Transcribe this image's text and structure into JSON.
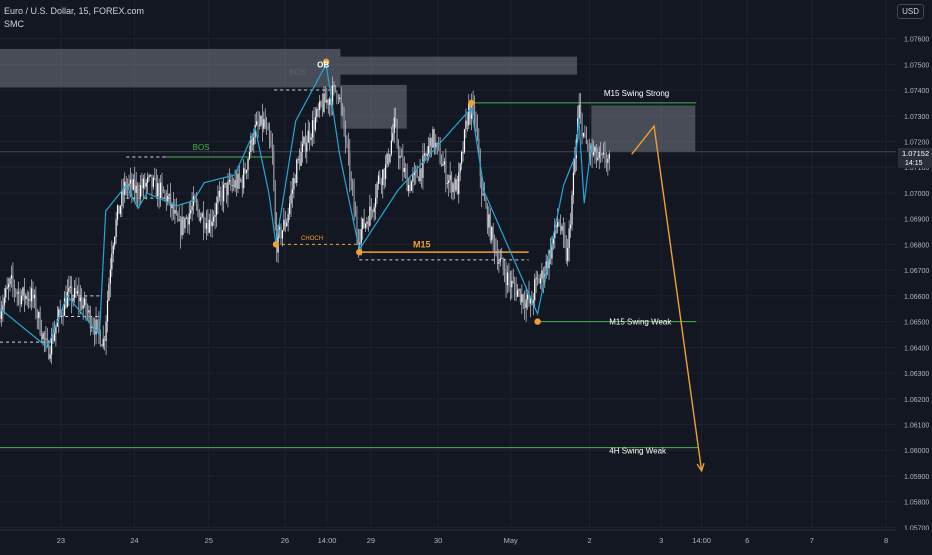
{
  "header": {
    "symbol_line": "Euro / U.S. Dollar, 15, FOREX.com",
    "indicator": "SMC",
    "currency": "USD"
  },
  "price_badge": {
    "price": "1.07152",
    "countdown": "14:15"
  },
  "colors": {
    "background": "#131722",
    "grid": "#1e222d",
    "candle": "#c8ccd6",
    "zigzag": "#26a6d1",
    "swing_point": "#f0a030",
    "projection": "#f0a030",
    "swing_line": "#4caf50",
    "zone": "#8a8e99",
    "badge": "#2a2e39"
  },
  "chart_data": {
    "type": "candlestick",
    "title": "",
    "symbol": "EUR/USD",
    "interval": "15",
    "ylim": [
      1.0569,
      1.0775
    ],
    "yticks": [
      1.076,
      1.075,
      1.074,
      1.073,
      1.072,
      1.071,
      1.07,
      1.069,
      1.068,
      1.067,
      1.066,
      1.065,
      1.064,
      1.063,
      1.062,
      1.061,
      1.06,
      1.059,
      1.058,
      1.057
    ],
    "ytick_labels": [
      "1.07600",
      "1.07500",
      "1.07400",
      "1.07300",
      "1.07200",
      "1.07100",
      "1.07000",
      "1.06900",
      "1.06800",
      "1.06700",
      "1.06600",
      "1.06500",
      "1.06400",
      "1.06300",
      "1.06200",
      "1.06100",
      "1.06000",
      "1.05900",
      "1.05800",
      "1.05700"
    ],
    "xlim": [
      0,
      100
    ],
    "xticks": [
      {
        "label": "23",
        "x": 6.8
      },
      {
        "label": "24",
        "x": 15.0
      },
      {
        "label": "25",
        "x": 23.3
      },
      {
        "label": "26",
        "x": 31.8
      },
      {
        "label": "14:00",
        "x": 36.5
      },
      {
        "label": "29",
        "x": 41.4
      },
      {
        "label": "30",
        "x": 48.9
      },
      {
        "label": "May",
        "x": 57.0
      },
      {
        "label": "2",
        "x": 65.8
      },
      {
        "label": "3",
        "x": 73.8
      },
      {
        "label": "14:00",
        "x": 78.3
      },
      {
        "label": "6",
        "x": 83.4
      },
      {
        "label": "7",
        "x": 90.6
      },
      {
        "label": "8",
        "x": 98.9
      }
    ],
    "price_path": [
      [
        0,
        1.0655
      ],
      [
        1.2,
        1.0665
      ],
      [
        2.3,
        1.066
      ],
      [
        3.6,
        1.066
      ],
      [
        5.3,
        1.0638
      ],
      [
        6.6,
        1.0652
      ],
      [
        7.5,
        1.066
      ],
      [
        8.7,
        1.066
      ],
      [
        10.3,
        1.065
      ],
      [
        11.6,
        1.0642
      ],
      [
        12.5,
        1.068
      ],
      [
        13.1,
        1.0691
      ],
      [
        14.0,
        1.0703
      ],
      [
        15.2,
        1.0701
      ],
      [
        16.7,
        1.0704
      ],
      [
        18.7,
        1.0698
      ],
      [
        20.0,
        1.0686
      ],
      [
        21.6,
        1.0695
      ],
      [
        23.3,
        1.0688
      ],
      [
        25.0,
        1.0701
      ],
      [
        27.1,
        1.0705
      ],
      [
        28.3,
        1.0724
      ],
      [
        29.5,
        1.0727
      ],
      [
        30.4,
        1.0714
      ],
      [
        30.8,
        1.068
      ],
      [
        32.0,
        1.069
      ],
      [
        33.1,
        1.071
      ],
      [
        34.2,
        1.0721
      ],
      [
        35.0,
        1.0727
      ],
      [
        36.0,
        1.0734
      ],
      [
        37.0,
        1.0738
      ],
      [
        37.7,
        1.0741
      ],
      [
        38.6,
        1.072
      ],
      [
        39.3,
        1.07
      ],
      [
        39.9,
        1.0683
      ],
      [
        40.7,
        1.0688
      ],
      [
        41.5,
        1.0694
      ],
      [
        42.2,
        1.0705
      ],
      [
        43.1,
        1.071
      ],
      [
        44.0,
        1.0726
      ],
      [
        44.7,
        1.0712
      ],
      [
        45.6,
        1.0703
      ],
      [
        46.4,
        1.0706
      ],
      [
        47.4,
        1.0712
      ],
      [
        48.2,
        1.0722
      ],
      [
        49.1,
        1.0714
      ],
      [
        50.0,
        1.0705
      ],
      [
        51.1,
        1.0702
      ],
      [
        52.3,
        1.0733
      ],
      [
        53.0,
        1.073
      ],
      [
        53.8,
        1.07
      ],
      [
        54.8,
        1.0684
      ],
      [
        55.8,
        1.0673
      ],
      [
        56.9,
        1.0665
      ],
      [
        58.0,
        1.0661
      ],
      [
        59.3,
        1.0656
      ],
      [
        59.7,
        1.0664
      ],
      [
        60.6,
        1.0668
      ],
      [
        61.5,
        1.0678
      ],
      [
        62.3,
        1.069
      ],
      [
        63.3,
        1.0674
      ],
      [
        64.1,
        1.071
      ],
      [
        64.6,
        1.0733
      ],
      [
        65.3,
        1.0719
      ],
      [
        66.1,
        1.0715
      ],
      [
        67.2,
        1.0712
      ],
      [
        67.6,
        1.0714
      ],
      [
        68.1,
        1.0711
      ]
    ],
    "zigzag": [
      [
        0,
        1.0655
      ],
      [
        5.3,
        1.064
      ],
      [
        7.5,
        1.066
      ],
      [
        11.1,
        1.0645
      ],
      [
        11.8,
        1.0693
      ],
      [
        14.1,
        1.0703
      ],
      [
        15.4,
        1.0694
      ],
      [
        16.4,
        1.07
      ],
      [
        19.7,
        1.0695
      ],
      [
        21.6,
        1.0697
      ],
      [
        22.8,
        1.0704
      ],
      [
        26.2,
        1.0707
      ],
      [
        28.5,
        1.0725
      ],
      [
        30.0,
        1.07
      ],
      [
        30.8,
        1.068
      ],
      [
        33.0,
        1.0728
      ],
      [
        36.4,
        1.075
      ],
      [
        37.9,
        1.0715
      ],
      [
        40.1,
        1.0678
      ],
      [
        44.4,
        1.0701
      ],
      [
        52.6,
        1.0733
      ],
      [
        54.1,
        1.07
      ],
      [
        60.0,
        1.0653
      ],
      [
        62.9,
        1.0703
      ],
      [
        63.7,
        1.071
      ],
      [
        64.3,
        1.0715
      ],
      [
        64.6,
        1.0729
      ],
      [
        65.2,
        1.0696
      ],
      [
        66.0,
        1.0719
      ]
    ],
    "swing_points": [
      {
        "x": 30.8,
        "y": 1.068
      },
      {
        "x": 36.4,
        "y": 1.0751
      },
      {
        "x": 40.1,
        "y": 1.0677
      },
      {
        "x": 52.6,
        "y": 1.0735
      },
      {
        "x": 60.0,
        "y": 1.065
      }
    ],
    "zones": [
      {
        "x0": 0,
        "x1": 38.0,
        "y0": 1.0756,
        "y1": 1.0741
      },
      {
        "x0": 38.0,
        "x1": 64.4,
        "y0": 1.0753,
        "y1": 1.0746
      },
      {
        "x0": 38.0,
        "x1": 45.4,
        "y0": 1.0742,
        "y1": 1.0725
      },
      {
        "x0": 66.0,
        "x1": 77.6,
        "y0": 1.0734,
        "y1": 1.0716
      }
    ],
    "structure_lines": [
      {
        "x0": 0,
        "x1": 100,
        "y": 1.0716,
        "style": "solid",
        "color": "grid"
      },
      {
        "x0": 18.1,
        "x1": 30.4,
        "y": 1.0714,
        "style": "solid",
        "color": "swing_line"
      },
      {
        "x0": 52.6,
        "x1": 77.7,
        "y": 1.0735,
        "style": "solid",
        "color": "swing_line"
      },
      {
        "x0": 60.0,
        "x1": 77.7,
        "y": 1.065,
        "style": "solid",
        "color": "swing_line"
      },
      {
        "x0": 0,
        "x1": 78.0,
        "y": 1.0601,
        "style": "solid",
        "color": "swing_line"
      },
      {
        "x0": 30.8,
        "x1": 40.1,
        "y": 1.068,
        "style": "dashed",
        "color": "orange"
      },
      {
        "x0": 40.1,
        "x1": 59.0,
        "y": 1.0677,
        "style": "solid",
        "color": "orange"
      },
      {
        "x0": 40.1,
        "x1": 59.0,
        "y": 1.0674,
        "style": "dashed",
        "color": "white"
      },
      {
        "x0": 0,
        "x1": 5.7,
        "y": 1.0642,
        "style": "dashed",
        "color": "white"
      },
      {
        "x0": 7.4,
        "x1": 11.3,
        "y": 1.066,
        "style": "dashed",
        "color": "white"
      },
      {
        "x0": 6.6,
        "x1": 11.3,
        "y": 1.0652,
        "style": "dashed",
        "color": "white"
      },
      {
        "x0": 14.1,
        "x1": 19.0,
        "y": 1.0698,
        "style": "dashed",
        "color": "white"
      },
      {
        "x0": 14.1,
        "x1": 18.6,
        "y": 1.0714,
        "style": "dashed",
        "color": "white"
      },
      {
        "x0": 30.6,
        "x1": 37.2,
        "y": 1.074,
        "style": "dashed",
        "color": "white"
      }
    ],
    "projection": [
      [
        70.5,
        1.0715
      ],
      [
        73.0,
        1.0726
      ],
      [
        78.3,
        1.0592
      ]
    ],
    "annotations": [
      {
        "text": "BOS",
        "x": 21.5,
        "y": 1.0716,
        "color": "#4caf50"
      },
      {
        "text": "BOS",
        "x": 32.3,
        "y": 1.0745,
        "color": "#5d606b"
      },
      {
        "text": "OB",
        "x": 35.4,
        "y": 1.0748,
        "color": "#ffffff"
      },
      {
        "text": "CHOCH",
        "x": 33.6,
        "y": 1.0681,
        "color": "#f0a030"
      },
      {
        "text": "M15",
        "x": 46.1,
        "y": 1.0678,
        "color": "#f0a030"
      },
      {
        "text": "M15 Swing Strong",
        "x": 67.4,
        "y": 1.0737,
        "color": "#ffffff"
      },
      {
        "text": "M15 Swing Weak",
        "x": 68.0,
        "y": 1.0648,
        "color": "#ffffff"
      },
      {
        "text": "4H Swing Weak",
        "x": 68.0,
        "y": 1.0598,
        "color": "#ffffff"
      }
    ]
  }
}
